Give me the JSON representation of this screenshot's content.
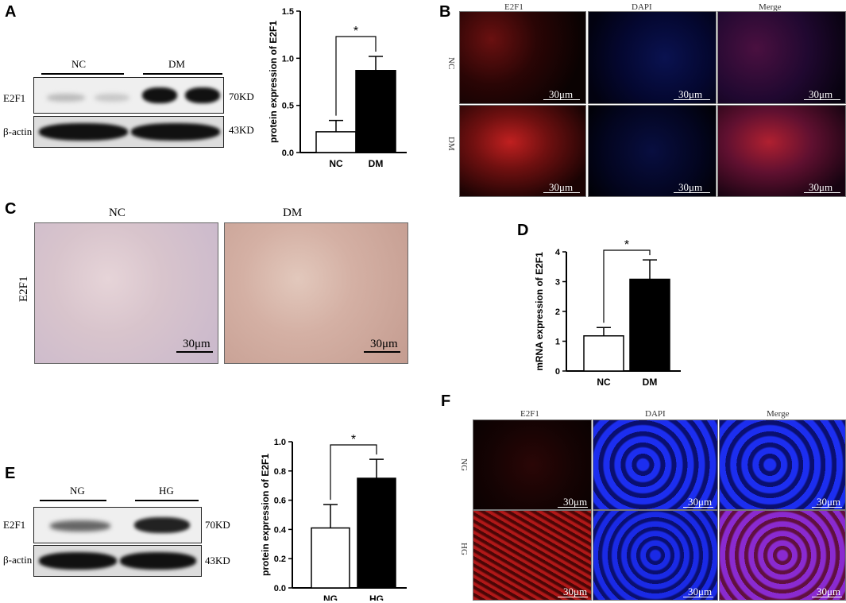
{
  "panels": {
    "A": {
      "label": "A",
      "groups": [
        "NC",
        "DM"
      ],
      "rows": [
        "E2F1",
        "β-actin"
      ],
      "kd": [
        "70KD",
        "43KD"
      ]
    },
    "B": {
      "label": "B",
      "columns": [
        "E2F1",
        "DAPI",
        "Merge"
      ],
      "rows": [
        "NC",
        "DM"
      ],
      "scale": "30μm"
    },
    "C": {
      "label": "C",
      "columns": [
        "NC",
        "DM"
      ],
      "row_label": "E2F1",
      "scale": "30μm"
    },
    "D": {
      "label": "D"
    },
    "E": {
      "label": "E",
      "groups": [
        "NG",
        "HG"
      ],
      "rows": [
        "E2F1",
        "β-actin"
      ],
      "kd": [
        "70KD",
        "43KD"
      ]
    },
    "F": {
      "label": "F",
      "columns": [
        "E2F1",
        "DAPI",
        "Merge"
      ],
      "rows": [
        "NG",
        "HG"
      ],
      "scale": "30μm"
    }
  },
  "significance": "*",
  "colors": {
    "bar_control": "#ffffff",
    "bar_treated": "#000000",
    "fluor_red": "#c62020",
    "fluor_blue": "#1e2ee0"
  },
  "chart_data": [
    {
      "id": "A",
      "type": "bar",
      "categories": [
        "NC",
        "DM"
      ],
      "values": [
        0.22,
        0.87
      ],
      "errors": [
        0.12,
        0.15
      ],
      "ylabel": "protein expression of E2F1",
      "ylim": [
        0,
        1.5
      ],
      "yticks": [
        "0.0",
        "0.5",
        "1.0",
        "1.5"
      ]
    },
    {
      "id": "D",
      "type": "bar",
      "categories": [
        "NC",
        "DM"
      ],
      "values": [
        1.18,
        3.08
      ],
      "errors": [
        0.28,
        0.65
      ],
      "ylabel": "mRNA expression of E2F1",
      "ylim": [
        0,
        4
      ],
      "yticks": [
        "0",
        "1",
        "2",
        "3",
        "4"
      ]
    },
    {
      "id": "E",
      "type": "bar",
      "categories": [
        "NG",
        "HG"
      ],
      "values": [
        0.41,
        0.75
      ],
      "errors": [
        0.16,
        0.13
      ],
      "ylabel": "protein expression of E2F1",
      "ylim": [
        0,
        1.0
      ],
      "yticks": [
        "0.0",
        "0.2",
        "0.4",
        "0.6",
        "0.8",
        "1.0"
      ]
    }
  ]
}
